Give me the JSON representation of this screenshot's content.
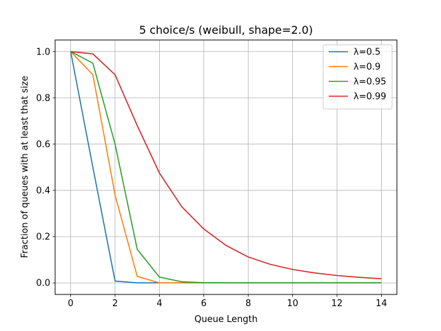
{
  "chart_data": {
    "type": "line",
    "title": "5 choice/s (weibull, shape=2.0)",
    "xlabel": "Queue Length",
    "ylabel": "Fraction of queues with at least that size",
    "xlim": [
      -0.7,
      14.7
    ],
    "ylim": [
      -0.05,
      1.05
    ],
    "xticks": [
      0,
      2,
      4,
      6,
      8,
      10,
      12,
      14
    ],
    "yticks": [
      0.0,
      0.2,
      0.4,
      0.6,
      0.8,
      1.0
    ],
    "xtick_labels": [
      "0",
      "2",
      "4",
      "6",
      "8",
      "10",
      "12",
      "14"
    ],
    "ytick_labels": [
      "0.0",
      "0.2",
      "0.4",
      "0.6",
      "0.8",
      "1.0"
    ],
    "grid": true,
    "legend_position": "top-right",
    "x": [
      0,
      1,
      2,
      3,
      4,
      5,
      6,
      7,
      8,
      9,
      10,
      11,
      12,
      13,
      14
    ],
    "series": [
      {
        "name": "λ=0.5",
        "color": "#1f77b4",
        "values": [
          1.0,
          0.5,
          0.008,
          0.0,
          0.0,
          0.0,
          0.0,
          0.0,
          0.0,
          0.0,
          0.0,
          0.0,
          0.0,
          0.0,
          0.0
        ]
      },
      {
        "name": "λ=0.9",
        "color": "#ff7f0e",
        "values": [
          1.0,
          0.9,
          0.38,
          0.028,
          0.0,
          0.0,
          0.0,
          0.0,
          0.0,
          0.0,
          0.0,
          0.0,
          0.0,
          0.0,
          0.0
        ]
      },
      {
        "name": "λ=0.95",
        "color": "#2ca02c",
        "values": [
          1.0,
          0.95,
          0.6,
          0.145,
          0.025,
          0.005,
          0.001,
          0.0,
          0.0,
          0.0,
          0.0,
          0.0,
          0.0,
          0.0,
          0.0
        ]
      },
      {
        "name": "λ=0.99",
        "color": "#d62728",
        "values": [
          1.0,
          0.99,
          0.9,
          0.68,
          0.475,
          0.33,
          0.233,
          0.162,
          0.112,
          0.08,
          0.058,
          0.043,
          0.032,
          0.024,
          0.018
        ]
      }
    ]
  }
}
